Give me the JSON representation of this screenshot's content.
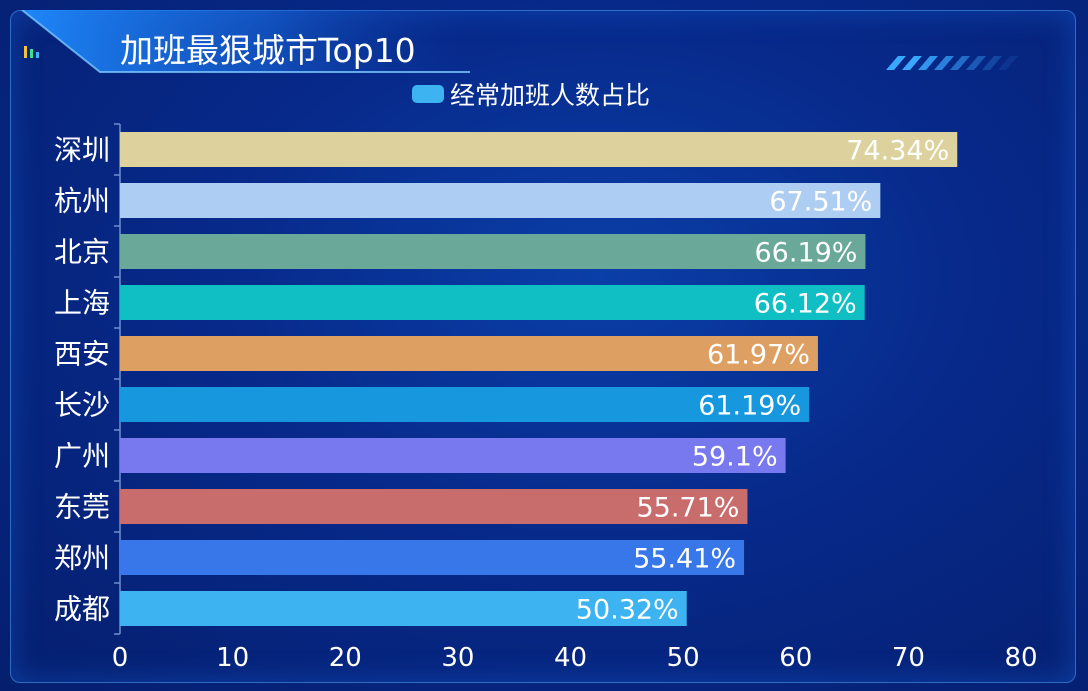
{
  "title": "加班最狠城市Top10",
  "legend_label": "经常加班人数占比",
  "chart_data": {
    "type": "bar",
    "orientation": "horizontal",
    "title": "加班最狠城市Top10",
    "categories": [
      "深圳",
      "杭州",
      "北京",
      "上海",
      "西安",
      "长沙",
      "广州",
      "东莞",
      "郑州",
      "成都"
    ],
    "series": [
      {
        "name": "经常加班人数占比",
        "values": [
          74.34,
          67.51,
          66.19,
          66.12,
          61.97,
          61.19,
          59.1,
          55.71,
          55.41,
          50.32
        ],
        "value_labels": [
          "74.34%",
          "67.51%",
          "66.19%",
          "66.12%",
          "61.97%",
          "61.19%",
          "59.1%",
          "55.71%",
          "55.41%",
          "50.32%"
        ]
      }
    ],
    "bar_colors": [
      "#ddd29e",
      "#aecdf3",
      "#6aa89a",
      "#10bfc4",
      "#dea062",
      "#1797dd",
      "#7979ef",
      "#c96c6c",
      "#3777ea",
      "#3eb3f2"
    ],
    "xlim": [
      0,
      80
    ],
    "x_ticks": [
      "0",
      "10",
      "20",
      "30",
      "40",
      "50",
      "60",
      "70",
      "80"
    ],
    "grid": false,
    "legend_position": "top"
  }
}
